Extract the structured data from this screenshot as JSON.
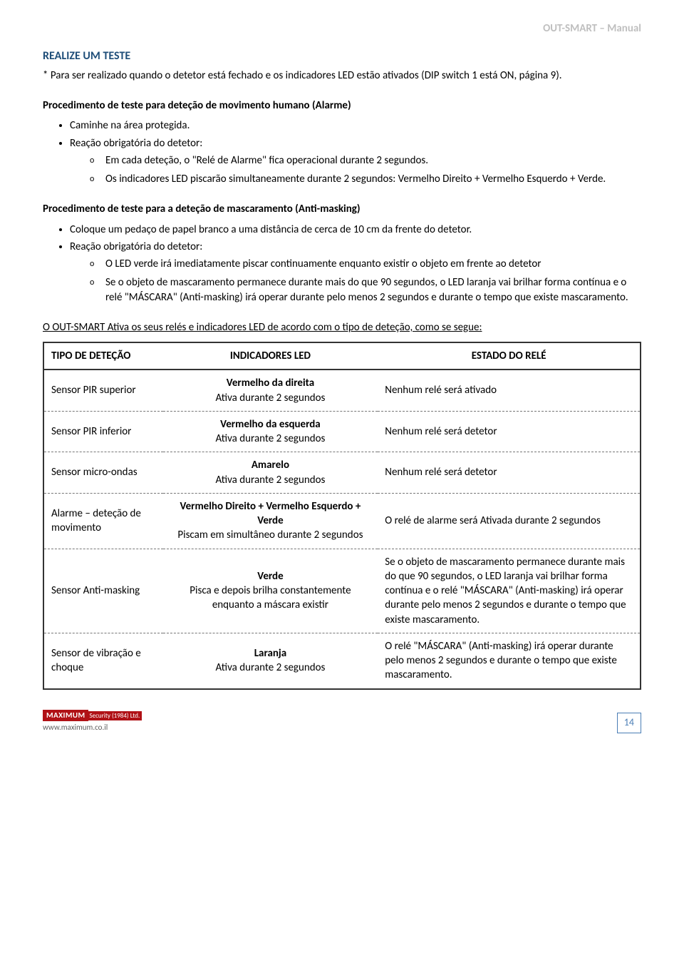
{
  "header": {
    "docTitle": "OUT-SMART – Manual"
  },
  "section": {
    "title": "REALIZE UM TESTE",
    "intro": "* Para ser realizado quando o detetor está fechado e os indicadores LED estão ativados (DIP switch 1 está  ON, página 9)."
  },
  "proc1": {
    "heading": "Procedimento de teste para deteção de movimento humano (Alarme)",
    "items": [
      "Caminhe na área protegida.",
      "Reação obrigatória do detetor:"
    ],
    "sub": [
      "Em cada deteção, o \"Relé de Alarme\" fica operacional durante 2 segundos.",
      "Os indicadores LED piscarão simultaneamente durante 2 segundos: Vermelho Direito + Vermelho Esquerdo + Verde."
    ]
  },
  "proc2": {
    "heading": "Procedimento de teste para a deteção de mascaramento (Anti-masking)",
    "items": [
      "Coloque um pedaço de papel branco a uma distância de cerca de 10 cm da frente do detetor.",
      "Reação obrigatória do detetor:"
    ],
    "sub": [
      "O LED verde irá imediatamente piscar continuamente enquanto existir o objeto em frente ao detetor",
      "Se o objeto de mascaramento permanece durante mais do que 90 segundos, o LED laranja vai brilhar forma contínua e o relé \"MÁSCARA\" (Anti-masking) irá operar durante pelo menos 2 segundos e durante o tempo que existe mascaramento."
    ]
  },
  "tableIntro": "O OUT-SMART Ativa os seus relés e indicadores LED de acordo com o tipo de deteção, como se segue:",
  "table": {
    "columns": [
      "TIPO DE DETEÇÃO",
      "INDICADORES LED",
      "ESTADO DO RELÉ"
    ],
    "rows": [
      {
        "type": "Sensor PIR superior",
        "led_bold": "Vermelho da direita",
        "led_sub": "Ativa durante 2 segundos",
        "relay": "Nenhum relé será ativado"
      },
      {
        "type": "Sensor PIR inferior",
        "led_bold": "Vermelho da esquerda",
        "led_sub": "Ativa durante 2 segundos",
        "relay": "Nenhum relé será detetor"
      },
      {
        "type": "Sensor micro-ondas",
        "led_bold": "Amarelo",
        "led_sub": "Ativa durante 2 segundos",
        "relay": "Nenhum relé será detetor"
      },
      {
        "type": "Alarme – deteção de movimento",
        "led_bold": "Vermelho Direito + Vermelho Esquerdo + Verde",
        "led_sub": "Piscam em simultâneo durante 2 segundos",
        "relay": "O relé  de alarme será Ativada durante 2 segundos"
      },
      {
        "type": "Sensor Anti-masking",
        "led_bold": "Verde",
        "led_sub": "Pisca e depois brilha constantemente enquanto a máscara existir",
        "relay": "Se o objeto de mascaramento permanece durante mais do que 90 segundos, o LED laranja vai brilhar forma contínua e o relé \"MÁSCARA\" (Anti-masking) irá operar durante pelo menos 2 segundos e durante o tempo que existe mascaramento."
      },
      {
        "type": "Sensor de vibração e choque",
        "led_bold": "Laranja",
        "led_sub": "Ativa durante 2 segundos",
        "relay": "O relé \"MÁSCARA\" (Anti-masking) irá operar durante pelo menos 2 segundos e durante o tempo que existe mascaramento."
      }
    ]
  },
  "footer": {
    "brand": "MAXIMUM",
    "brandSub": "Security (1984) Ltd.",
    "domain": "www.maximum.co.il",
    "page": "14"
  },
  "colors": {
    "headerGray": "#bfbfbf",
    "titleBlue": "#1f4e79",
    "borderDark": "#333333",
    "dashGray": "#777777",
    "brandRed": "#b01116",
    "pageBlue": "#4a7db5"
  }
}
